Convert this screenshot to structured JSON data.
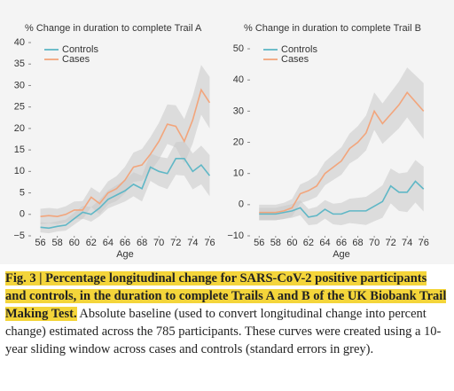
{
  "chart_data": [
    {
      "type": "line",
      "title": "% Change in duration to complete Trail A",
      "x_label": "Age",
      "x": [
        56,
        57,
        58,
        59,
        60,
        61,
        62,
        63,
        64,
        65,
        66,
        67,
        68,
        69,
        70,
        71,
        72,
        73,
        74,
        75,
        76
      ],
      "xlim": [
        55,
        77
      ],
      "xticks": [
        56,
        58,
        60,
        62,
        64,
        66,
        68,
        70,
        72,
        74,
        76
      ],
      "ylim": [
        -5,
        40
      ],
      "yticks": [
        {
          "value": -5,
          "label": "−5"
        },
        0,
        5,
        10,
        15,
        20,
        25,
        30,
        35,
        40
      ],
      "series": [
        {
          "name": "Controls",
          "color": "#5fb7c6",
          "values": [
            -3,
            -3.2,
            -2.8,
            -2.5,
            -1,
            0.5,
            0,
            1.5,
            3.5,
            4.5,
            5.5,
            7,
            6,
            11,
            10,
            9.5,
            13,
            13,
            10,
            11.5,
            9
          ],
          "error": [
            1.2,
            1.2,
            1.2,
            1.3,
            1.4,
            1.5,
            1.7,
            1.9,
            2.1,
            2.3,
            2.5,
            2.8,
            3,
            3.2,
            3.4,
            3.6,
            3.8,
            4,
            4.2,
            4.5,
            4.8
          ]
        },
        {
          "name": "Cases",
          "color": "#f2a57c",
          "values": [
            -0.5,
            -0.3,
            -0.5,
            0,
            1,
            1,
            4,
            2.5,
            5,
            6,
            8,
            11,
            11.5,
            14,
            17,
            21,
            20.5,
            17,
            22,
            29,
            26
          ],
          "error": [
            1.8,
            1.8,
            1.8,
            1.9,
            2,
            2.1,
            2.3,
            2.5,
            2.7,
            2.9,
            3.1,
            3.4,
            3.7,
            4,
            4.3,
            4.6,
            4.9,
            5.2,
            5.5,
            5.8,
            6
          ]
        }
      ]
    },
    {
      "type": "line",
      "title": "% Change in duration to complete Trail B",
      "x_label": "Age",
      "x": [
        56,
        57,
        58,
        59,
        60,
        61,
        62,
        63,
        64,
        65,
        66,
        67,
        68,
        69,
        70,
        71,
        72,
        73,
        74,
        75,
        76
      ],
      "xlim": [
        55,
        77
      ],
      "xticks": [
        56,
        58,
        60,
        62,
        64,
        66,
        68,
        70,
        72,
        74,
        76
      ],
      "ylim": [
        -10,
        52
      ],
      "yticks": [
        {
          "value": -10,
          "label": "−10"
        },
        0,
        10,
        20,
        30,
        40,
        50
      ],
      "series": [
        {
          "name": "Controls",
          "color": "#5fb7c6",
          "values": [
            -3,
            -3,
            -3,
            -2.5,
            -2,
            -1,
            -4,
            -3.5,
            -1.5,
            -3,
            -3,
            -2,
            -2,
            -2,
            -0.5,
            1,
            6,
            4,
            4,
            7.5,
            5
          ],
          "error": [
            2,
            2,
            2,
            2.1,
            2.2,
            2.4,
            2.6,
            2.8,
            3,
            3.3,
            3.6,
            3.9,
            4.2,
            4.5,
            4.8,
            5.2,
            5.6,
            6,
            6.4,
            6.8,
            7.2
          ]
        },
        {
          "name": "Cases",
          "color": "#f2a57c",
          "values": [
            -2.5,
            -2.5,
            -2.5,
            -2,
            -1,
            3.5,
            4.5,
            6,
            10,
            12,
            14,
            18,
            20,
            23,
            30,
            26,
            29,
            32,
            36,
            33,
            30
          ],
          "error": [
            2.5,
            2.5,
            2.5,
            2.6,
            2.8,
            3,
            3.2,
            3.5,
            3.8,
            4.1,
            4.4,
            4.8,
            5.2,
            5.6,
            6,
            6.5,
            7,
            7.5,
            8,
            8.5,
            9
          ]
        }
      ]
    }
  ],
  "caption": {
    "bold": "Fig. 3 | Percentage longitudinal change for SARS-CoV-2 positive participants and controls, in the duration to complete Trails A and B of the UK Biobank Trail Making Test.",
    "text": " Absolute baseline (used to convert longitudinal change into percent change) estimated across the 785 participants. These curves were created using a 10-year sliding window across cases and controls (standard errors in grey)."
  }
}
